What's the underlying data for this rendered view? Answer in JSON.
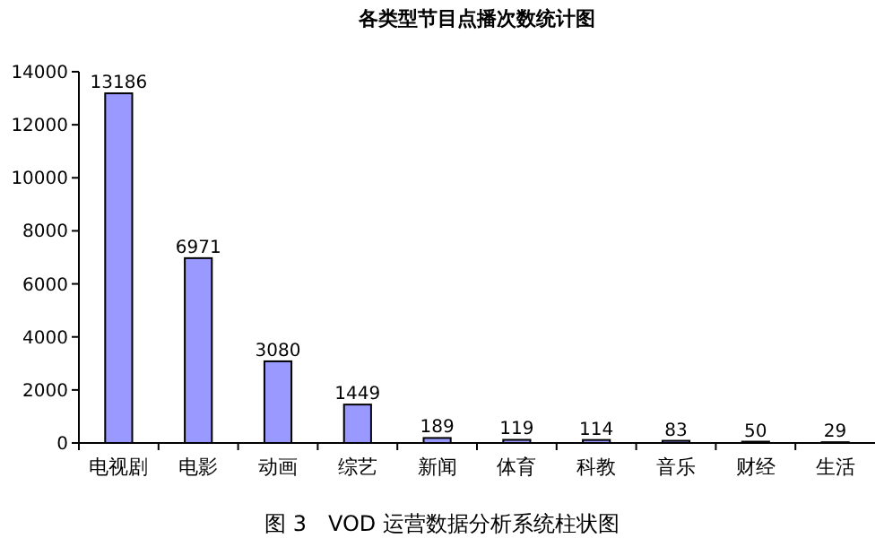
{
  "chart_data": {
    "type": "bar",
    "title": "各类型节目点播次数统计图",
    "categories": [
      "电视剧",
      "电影",
      "动画",
      "综艺",
      "新闻",
      "体育",
      "科教",
      "音乐",
      "财经",
      "生活"
    ],
    "values": [
      13186,
      6971,
      3080,
      1449,
      189,
      119,
      114,
      83,
      50,
      29
    ],
    "color": "#9999ff",
    "ylim": [
      0,
      14000
    ],
    "yticks": [
      0,
      2000,
      4000,
      6000,
      8000,
      10000,
      12000,
      14000
    ],
    "data_labels": true,
    "annotations": [
      "图 3　VOD 运营数据分析系统柱状图"
    ]
  }
}
